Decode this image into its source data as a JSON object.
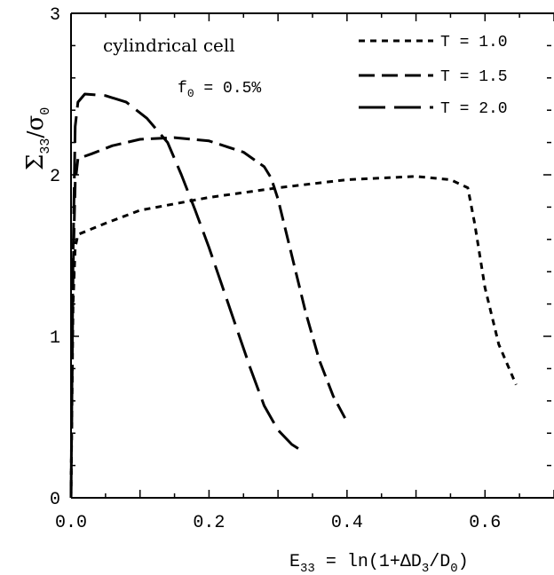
{
  "chart_data": {
    "type": "line",
    "title": "",
    "ylabel_main": "Σ",
    "ylabel_sub": "33",
    "ylabel_slash": "/",
    "ylabel_sigma": "σ",
    "ylabel_sigma_sub": "0",
    "xlabel_E": "E",
    "xlabel_sub": "33",
    "xlabel_rest": " = ln(1+ΔD",
    "xlabel_sub2": "3",
    "xlabel_slash": "/D",
    "xlabel_sub3": "0",
    "xlabel_close": ")",
    "annotation_cell": "cylindrical cell",
    "annotation_f": "f",
    "annotation_f_sub": "0",
    "annotation_f_val": " = 0.5%",
    "xlim": [
      0.0,
      0.7
    ],
    "ylim": [
      0,
      3
    ],
    "x_ticks": [
      0.0,
      0.2,
      0.4,
      0.6
    ],
    "x_tick_labels": [
      "0.0",
      "0.2",
      "0.4",
      "0.6"
    ],
    "y_ticks": [
      0,
      1,
      2,
      3
    ],
    "y_tick_labels": [
      "0",
      "1",
      "2",
      "3"
    ],
    "legend_position": "top-right",
    "grid": false,
    "series": [
      {
        "name": "T = 1.0",
        "dash": "short",
        "x": [
          0.0,
          0.003,
          0.006,
          0.01,
          0.05,
          0.1,
          0.2,
          0.3,
          0.4,
          0.5,
          0.55,
          0.575,
          0.585,
          0.6,
          0.62,
          0.645
        ],
        "y": [
          0.0,
          1.2,
          1.55,
          1.63,
          1.7,
          1.78,
          1.86,
          1.92,
          1.97,
          1.99,
          1.97,
          1.92,
          1.7,
          1.3,
          0.95,
          0.7
        ]
      },
      {
        "name": "T = 1.5",
        "dash": "medium",
        "x": [
          0.0,
          0.003,
          0.006,
          0.01,
          0.03,
          0.06,
          0.1,
          0.15,
          0.2,
          0.25,
          0.28,
          0.29,
          0.3,
          0.32,
          0.34,
          0.36,
          0.38,
          0.4
        ],
        "y": [
          0.0,
          1.4,
          1.95,
          2.1,
          2.13,
          2.18,
          2.22,
          2.23,
          2.21,
          2.14,
          2.05,
          1.98,
          1.85,
          1.5,
          1.15,
          0.85,
          0.63,
          0.47
        ]
      },
      {
        "name": "T = 2.0",
        "dash": "long",
        "x": [
          0.0,
          0.003,
          0.006,
          0.01,
          0.02,
          0.05,
          0.08,
          0.11,
          0.14,
          0.16,
          0.18,
          0.2,
          0.22,
          0.24,
          0.26,
          0.28,
          0.3,
          0.32,
          0.335
        ],
        "y": [
          0.0,
          1.5,
          2.3,
          2.45,
          2.5,
          2.49,
          2.45,
          2.35,
          2.2,
          2.0,
          1.78,
          1.55,
          1.3,
          1.05,
          0.8,
          0.57,
          0.42,
          0.33,
          0.29
        ]
      }
    ]
  }
}
